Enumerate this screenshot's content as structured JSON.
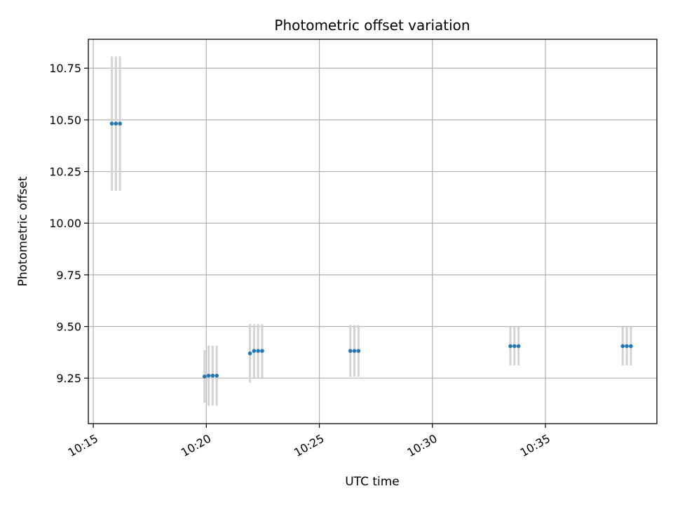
{
  "chart_data": {
    "type": "scatter",
    "title": "Photometric offset variation",
    "xlabel": "UTC time",
    "ylabel": "Photometric offset",
    "x_unit": "minutes after 10:00",
    "xlim": [
      14.78,
      39.93
    ],
    "ylim": [
      9.03,
      10.89
    ],
    "x_ticks": [
      {
        "value": 15,
        "label": "10:15"
      },
      {
        "value": 20,
        "label": "10:20"
      },
      {
        "value": 25,
        "label": "10:25"
      },
      {
        "value": 30,
        "label": "10:30"
      },
      {
        "value": 35,
        "label": "10:35"
      }
    ],
    "y_ticks": [
      {
        "value": 9.25,
        "label": "9.25"
      },
      {
        "value": 9.5,
        "label": "9.50"
      },
      {
        "value": 9.75,
        "label": "9.75"
      },
      {
        "value": 10.0,
        "label": "10.00"
      },
      {
        "value": 10.25,
        "label": "10.25"
      },
      {
        "value": 10.5,
        "label": "10.50"
      },
      {
        "value": 10.75,
        "label": "10.75"
      }
    ],
    "grid": true,
    "point_color": "#1f77b4",
    "errorbar_color": "#d3d3d3",
    "points": [
      {
        "x": 15.82,
        "y": 10.482,
        "err": 0.325
      },
      {
        "x": 16.0,
        "y": 10.482,
        "err": 0.325
      },
      {
        "x": 16.18,
        "y": 10.482,
        "err": 0.325
      },
      {
        "x": 19.92,
        "y": 9.258,
        "err": 0.127
      },
      {
        "x": 20.1,
        "y": 9.262,
        "err": 0.145
      },
      {
        "x": 20.28,
        "y": 9.262,
        "err": 0.145
      },
      {
        "x": 20.46,
        "y": 9.262,
        "err": 0.145
      },
      {
        "x": 21.93,
        "y": 9.37,
        "err": 0.142
      },
      {
        "x": 22.11,
        "y": 9.382,
        "err": 0.13
      },
      {
        "x": 22.29,
        "y": 9.382,
        "err": 0.13
      },
      {
        "x": 22.47,
        "y": 9.382,
        "err": 0.13
      },
      {
        "x": 26.37,
        "y": 9.382,
        "err": 0.125
      },
      {
        "x": 26.55,
        "y": 9.382,
        "err": 0.125
      },
      {
        "x": 26.73,
        "y": 9.382,
        "err": 0.125
      },
      {
        "x": 33.45,
        "y": 9.405,
        "err": 0.093
      },
      {
        "x": 33.63,
        "y": 9.405,
        "err": 0.093
      },
      {
        "x": 33.81,
        "y": 9.405,
        "err": 0.093
      },
      {
        "x": 38.42,
        "y": 9.405,
        "err": 0.093
      },
      {
        "x": 38.6,
        "y": 9.405,
        "err": 0.093
      },
      {
        "x": 38.78,
        "y": 9.405,
        "err": 0.093
      }
    ]
  }
}
